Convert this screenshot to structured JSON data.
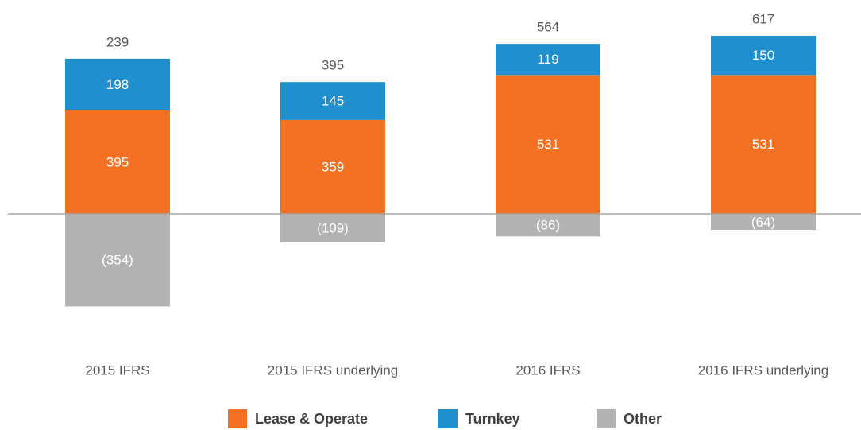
{
  "chart_data": {
    "type": "bar",
    "stacked": true,
    "categories": [
      "2015 IFRS",
      "2015 IFRS underlying",
      "2016 IFRS",
      "2016 IFRS underlying"
    ],
    "series": [
      {
        "name": "Lease & Operate",
        "color": "#f47023",
        "values": [
          395,
          359,
          531,
          531
        ]
      },
      {
        "name": "Turnkey",
        "color": "#1f8fce",
        "values": [
          198,
          145,
          119,
          150
        ]
      },
      {
        "name": "Other",
        "color": "#b3b3b3",
        "values": [
          -354,
          -109,
          -86,
          -64
        ],
        "value_labels": [
          "(354)",
          "(109)",
          "(86)",
          "(64)"
        ]
      }
    ],
    "totals": [
      239,
      395,
      564,
      617
    ],
    "legend": "bottom"
  }
}
